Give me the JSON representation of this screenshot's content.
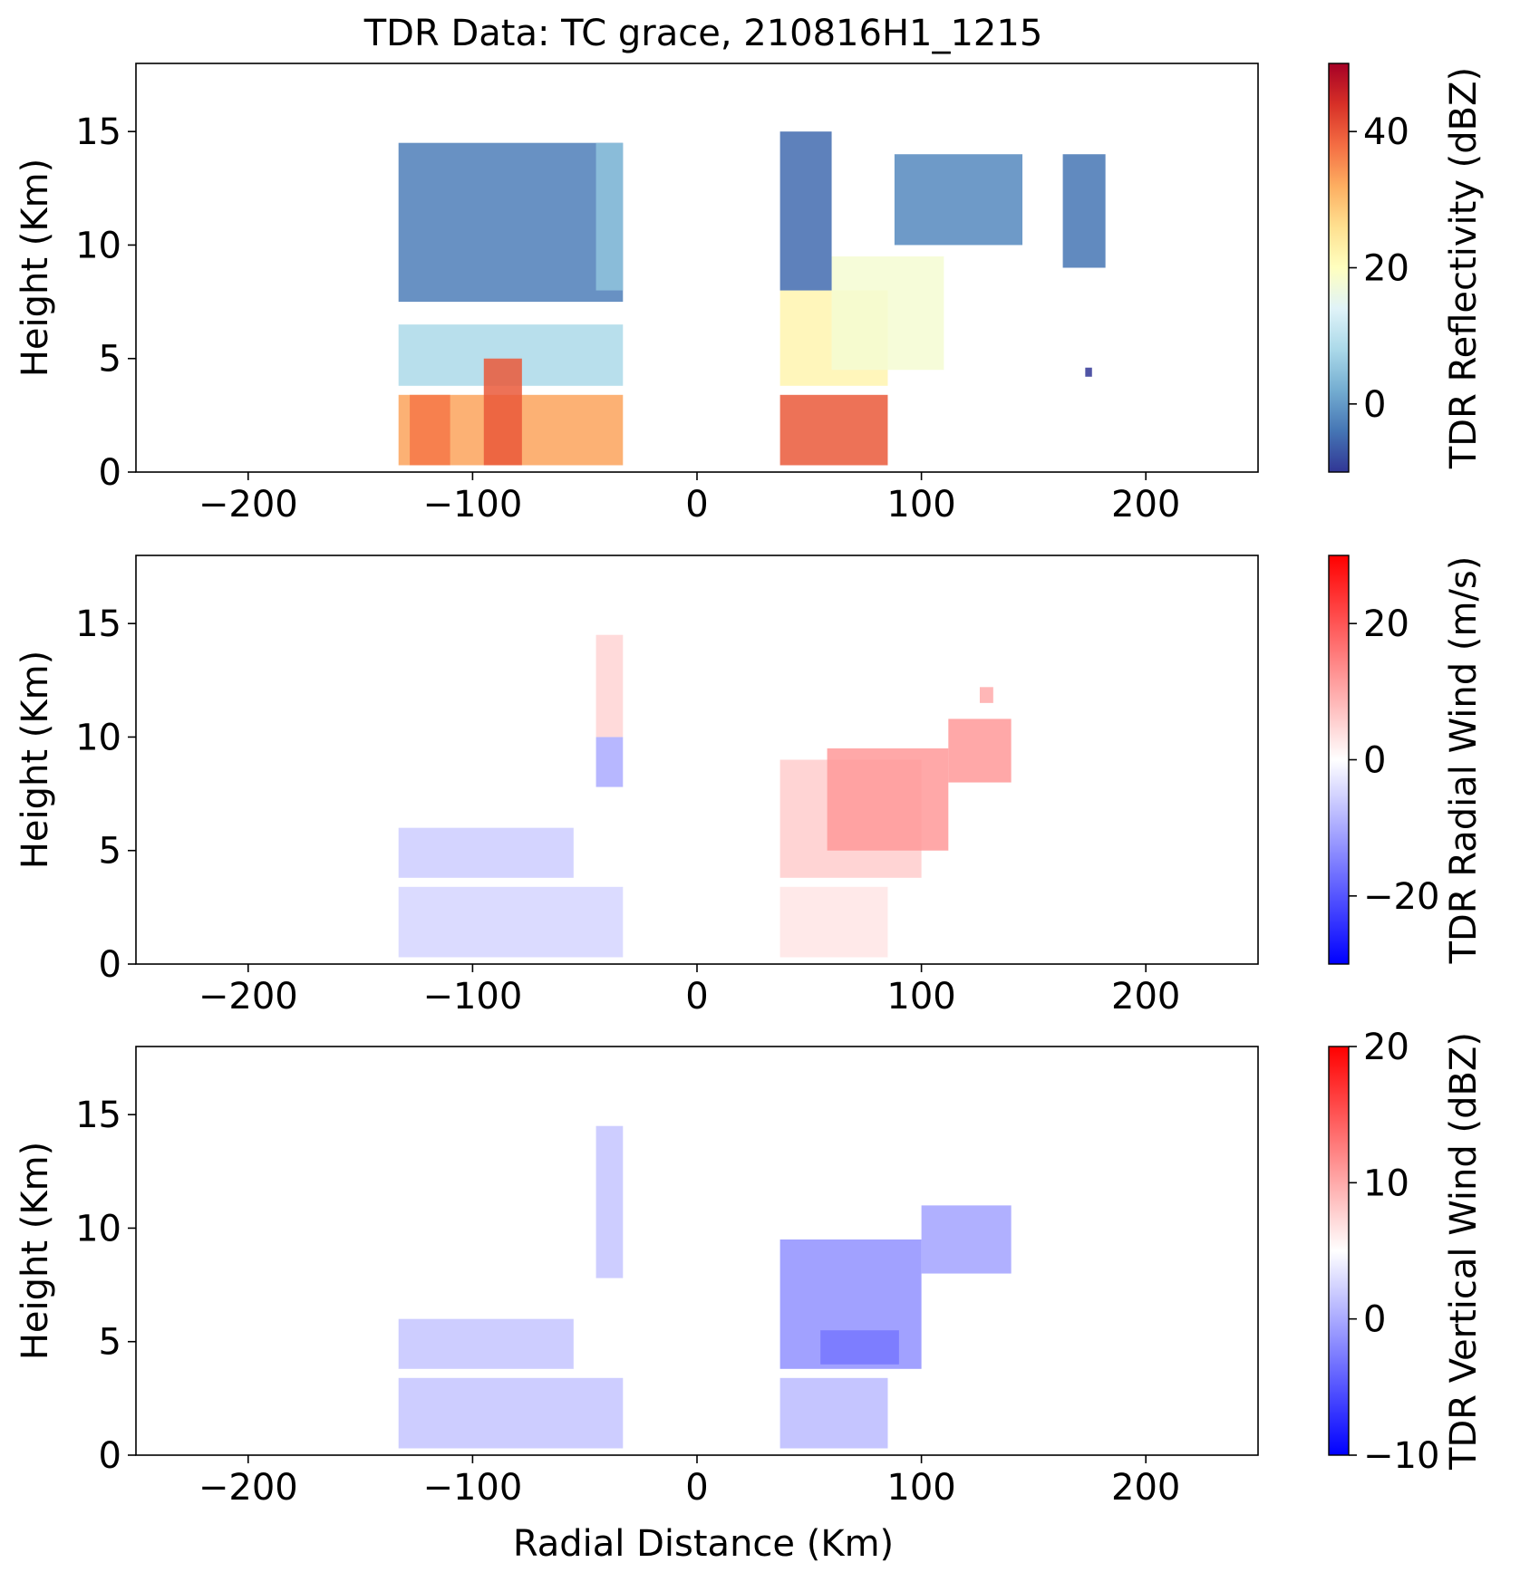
{
  "figure": {
    "title": "TDR Data: TC grace, 210816H1_1215",
    "xlabel": "Radial Distance (Km)"
  },
  "chart_data": [
    {
      "type": "heatmap",
      "id": "reflectivity",
      "ylabel": "Height (Km)",
      "xlabel": "",
      "xlim": [
        -250,
        250
      ],
      "ylim": [
        0,
        18
      ],
      "xticks": [
        -200,
        -100,
        0,
        100,
        200
      ],
      "yticks": [
        0,
        5,
        10,
        15
      ],
      "colorbar": {
        "label": "TDR Reflectivity (dBZ)",
        "colormap": "RdYlBu_r",
        "range": [
          -10,
          50
        ],
        "ticks": [
          0,
          20,
          40
        ]
      },
      "regions": [
        {
          "x": [
            -133,
            -33
          ],
          "y": [
            0.3,
            3.4
          ],
          "value": 33
        },
        {
          "x": [
            -133,
            -33
          ],
          "y": [
            3.8,
            6.5
          ],
          "value": 8
        },
        {
          "x": [
            -133,
            -33
          ],
          "y": [
            7.5,
            14.5
          ],
          "value": -3
        },
        {
          "x": [
            -128,
            -110
          ],
          "y": [
            0.3,
            3.4
          ],
          "value": 37
        },
        {
          "x": [
            -95,
            -78
          ],
          "y": [
            0.3,
            5.0
          ],
          "value": 40
        },
        {
          "x": [
            -45,
            -33
          ],
          "y": [
            8.0,
            14.5
          ],
          "value": 5
        },
        {
          "x": [
            37,
            85
          ],
          "y": [
            0.3,
            3.4
          ],
          "value": 40
        },
        {
          "x": [
            37,
            85
          ],
          "y": [
            3.8,
            8.0
          ],
          "value": 22
        },
        {
          "x": [
            60,
            110
          ],
          "y": [
            4.5,
            9.5
          ],
          "value": 18
        },
        {
          "x": [
            37,
            60
          ],
          "y": [
            8.0,
            15.0
          ],
          "value": -5
        },
        {
          "x": [
            88,
            145
          ],
          "y": [
            10.0,
            14.0
          ],
          "value": -2
        },
        {
          "x": [
            163,
            182
          ],
          "y": [
            9.0,
            14.0
          ],
          "value": -4
        },
        {
          "x": [
            173,
            176
          ],
          "y": [
            4.2,
            4.6
          ],
          "value": -10
        }
      ]
    },
    {
      "type": "heatmap",
      "id": "radial_wind",
      "ylabel": "Height (Km)",
      "xlabel": "",
      "xlim": [
        -250,
        250
      ],
      "ylim": [
        0,
        18
      ],
      "xticks": [
        -200,
        -100,
        0,
        100,
        200
      ],
      "yticks": [
        0,
        5,
        10,
        15
      ],
      "colorbar": {
        "label": "TDR Radial Wind (m/s)",
        "colormap": "bwr",
        "range": [
          -30,
          30
        ],
        "ticks": [
          -20,
          0,
          20
        ]
      },
      "regions": [
        {
          "x": [
            -133,
            -33
          ],
          "y": [
            0.3,
            3.4
          ],
          "value": -5
        },
        {
          "x": [
            -133,
            -55
          ],
          "y": [
            3.8,
            6.0
          ],
          "value": -6
        },
        {
          "x": [
            -45,
            -33
          ],
          "y": [
            7.8,
            10.0
          ],
          "value": -10
        },
        {
          "x": [
            -45,
            -33
          ],
          "y": [
            10.0,
            14.5
          ],
          "value": 5
        },
        {
          "x": [
            37,
            85
          ],
          "y": [
            0.3,
            3.4
          ],
          "value": 3
        },
        {
          "x": [
            37,
            100
          ],
          "y": [
            3.8,
            9.0
          ],
          "value": 6
        },
        {
          "x": [
            58,
            112
          ],
          "y": [
            5.0,
            9.5
          ],
          "value": 12
        },
        {
          "x": [
            112,
            140
          ],
          "y": [
            8.0,
            10.8
          ],
          "value": 12
        },
        {
          "x": [
            126,
            132
          ],
          "y": [
            11.5,
            12.2
          ],
          "value": 10
        }
      ]
    },
    {
      "type": "heatmap",
      "id": "vertical_wind",
      "ylabel": "Height (Km)",
      "xlabel": "Radial Distance (Km)",
      "xlim": [
        -250,
        250
      ],
      "ylim": [
        0,
        18
      ],
      "xticks": [
        -200,
        -100,
        0,
        100,
        200
      ],
      "yticks": [
        0,
        5,
        10,
        15
      ],
      "colorbar": {
        "label": "TDR Vertical Wind (dBZ)",
        "colormap": "bwr",
        "range": [
          -10,
          20
        ],
        "ticks": [
          -10,
          0,
          10,
          20
        ]
      },
      "regions": [
        {
          "x": [
            -133,
            -33
          ],
          "y": [
            0.3,
            3.4
          ],
          "value": 1.5
        },
        {
          "x": [
            -133,
            -55
          ],
          "y": [
            3.8,
            6.0
          ],
          "value": 1.5
        },
        {
          "x": [
            -45,
            -33
          ],
          "y": [
            7.8,
            14.5
          ],
          "value": 1.5
        },
        {
          "x": [
            37,
            85
          ],
          "y": [
            0.3,
            3.4
          ],
          "value": 1.0
        },
        {
          "x": [
            37,
            100
          ],
          "y": [
            3.8,
            9.5
          ],
          "value": -1.5
        },
        {
          "x": [
            55,
            90
          ],
          "y": [
            4.0,
            5.5
          ],
          "value": -3.0
        },
        {
          "x": [
            100,
            140
          ],
          "y": [
            8.0,
            11.0
          ],
          "value": -0.5
        }
      ]
    }
  ]
}
